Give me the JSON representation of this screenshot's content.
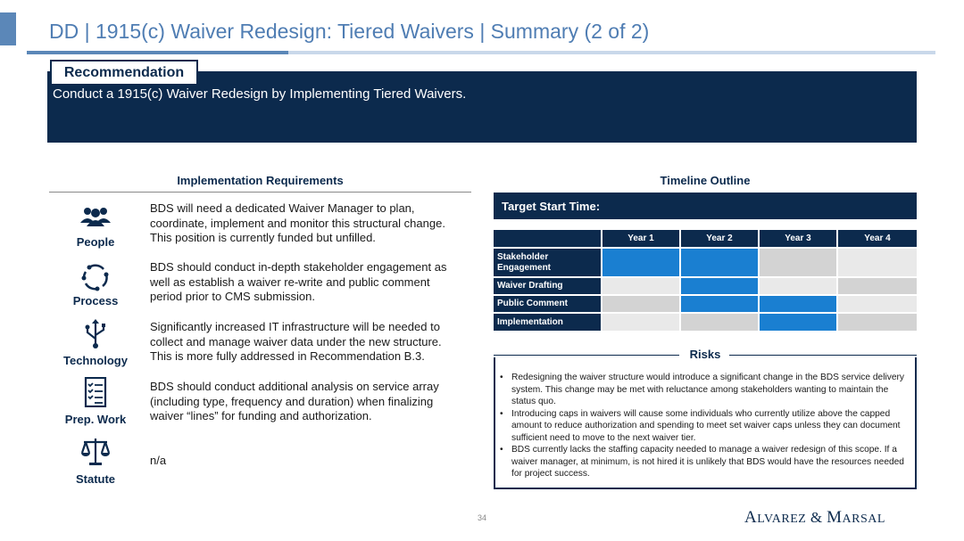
{
  "title": "DD | 1915(c) Waiver Redesign: Tiered Waivers | Summary (2 of 2)",
  "recommendation": {
    "tab_label": "Recommendation",
    "text": "Conduct a 1915(c) Waiver Redesign by Implementing Tiered Waivers."
  },
  "implementation": {
    "heading": "Implementation Requirements",
    "items": [
      {
        "label": "People",
        "icon": "people-icon",
        "text": "BDS will need a dedicated Waiver Manager to plan, coordinate, implement and monitor this structural change. This position is currently funded but unfilled."
      },
      {
        "label": "Process",
        "icon": "process-cycle-icon",
        "text": "BDS should conduct in-depth stakeholder engagement as well as establish a waiver re-write and public comment period prior to CMS submission."
      },
      {
        "label": "Technology",
        "icon": "usb-technology-icon",
        "text": "Significantly increased IT infrastructure will be needed to collect and manage waiver data under the new structure. This is more fully addressed in Recommendation B.3."
      },
      {
        "label": "Prep. Work",
        "icon": "checklist-icon",
        "text": "BDS should conduct additional analysis on service array (including type, frequency and duration) when finalizing waiver “lines” for funding and authorization."
      },
      {
        "label": "Statute",
        "icon": "scales-icon",
        "text": "n/a"
      }
    ]
  },
  "timeline": {
    "heading": "Timeline Outline",
    "target_label": "Target Start Time:",
    "years": [
      "Year 1",
      "Year 2",
      "Year 3",
      "Year 4"
    ],
    "rows": [
      {
        "label": "Stakeholder Engagement",
        "active": [
          true,
          true,
          false,
          false
        ]
      },
      {
        "label": "Waiver Drafting",
        "active": [
          false,
          true,
          false,
          false
        ]
      },
      {
        "label": "Public Comment",
        "active": [
          false,
          true,
          true,
          false
        ]
      },
      {
        "label": "Implementation",
        "active": [
          false,
          false,
          true,
          false
        ]
      }
    ],
    "colors": {
      "active": "#1a7fd1",
      "inactive_dark": "#d3d3d3",
      "inactive_light": "#e9e9e9",
      "header": "#0c2a4d"
    }
  },
  "risks": {
    "heading": "Risks",
    "items": [
      "Redesigning the waiver structure would introduce a significant change in the BDS service delivery system. This change may be met with reluctance among stakeholders wanting to maintain the status quo.",
      "Introducing caps in waivers will cause some individuals who currently utilize above the capped amount to reduce authorization and spending to meet set waiver caps unless they can document sufficient need to move to the next waiver tier.",
      "BDS currently lacks the staffing capacity needed to manage a waiver redesign of this scope. If a waiver manager, at minimum, is not hired it is unlikely that BDS would have the resources needed for project success."
    ]
  },
  "footer": {
    "page_number": "34",
    "logo_text": "Alvarez & Marsal"
  }
}
